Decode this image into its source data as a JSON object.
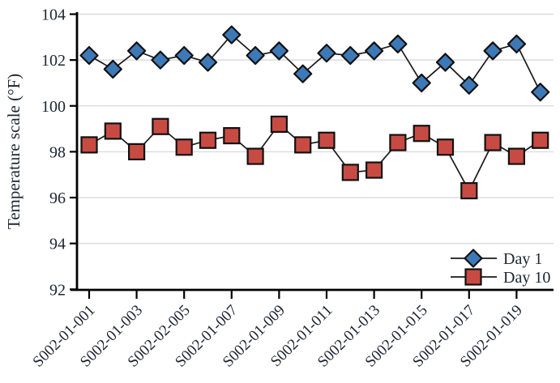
{
  "chart_data": {
    "type": "line",
    "title": "",
    "xlabel": "",
    "ylabel": "Temperature scale (°F)",
    "ylim": [
      92,
      104
    ],
    "yticks": [
      92,
      94,
      96,
      98,
      100,
      102,
      104
    ],
    "x_tick_labels": [
      "S002-01-001",
      "S002-01-003",
      "S002-02-005",
      "S002-01-007",
      "S002-01-009",
      "S002-01-011",
      "S002-01-013",
      "S002-01-015",
      "S002-01-017",
      "S002-01-019"
    ],
    "x_tick_every": 2,
    "n_points": 20,
    "grid": true,
    "legend_position": "bottom-right",
    "series": [
      {
        "name": "Day 1",
        "marker": "diamond",
        "color": "#3d79b7",
        "values": [
          102.2,
          101.6,
          102.4,
          102.0,
          102.2,
          101.9,
          103.1,
          102.2,
          102.4,
          101.4,
          102.3,
          102.2,
          102.4,
          102.7,
          101.0,
          101.9,
          100.9,
          102.4,
          102.7,
          100.6
        ]
      },
      {
        "name": "Day 10",
        "marker": "square",
        "color": "#c84b43",
        "values": [
          98.3,
          98.9,
          98.0,
          99.1,
          98.2,
          98.5,
          98.7,
          97.8,
          99.2,
          98.3,
          98.5,
          97.1,
          97.2,
          98.4,
          98.8,
          98.2,
          96.3,
          98.4,
          97.8,
          98.5
        ]
      }
    ]
  },
  "style": {
    "background": "#ffffff",
    "axis_color": "#000000",
    "grid_color": "#dcdcdc",
    "line_color": "#1a1a1a",
    "marker_outline": "#111111",
    "text_color": "#1c2431"
  }
}
